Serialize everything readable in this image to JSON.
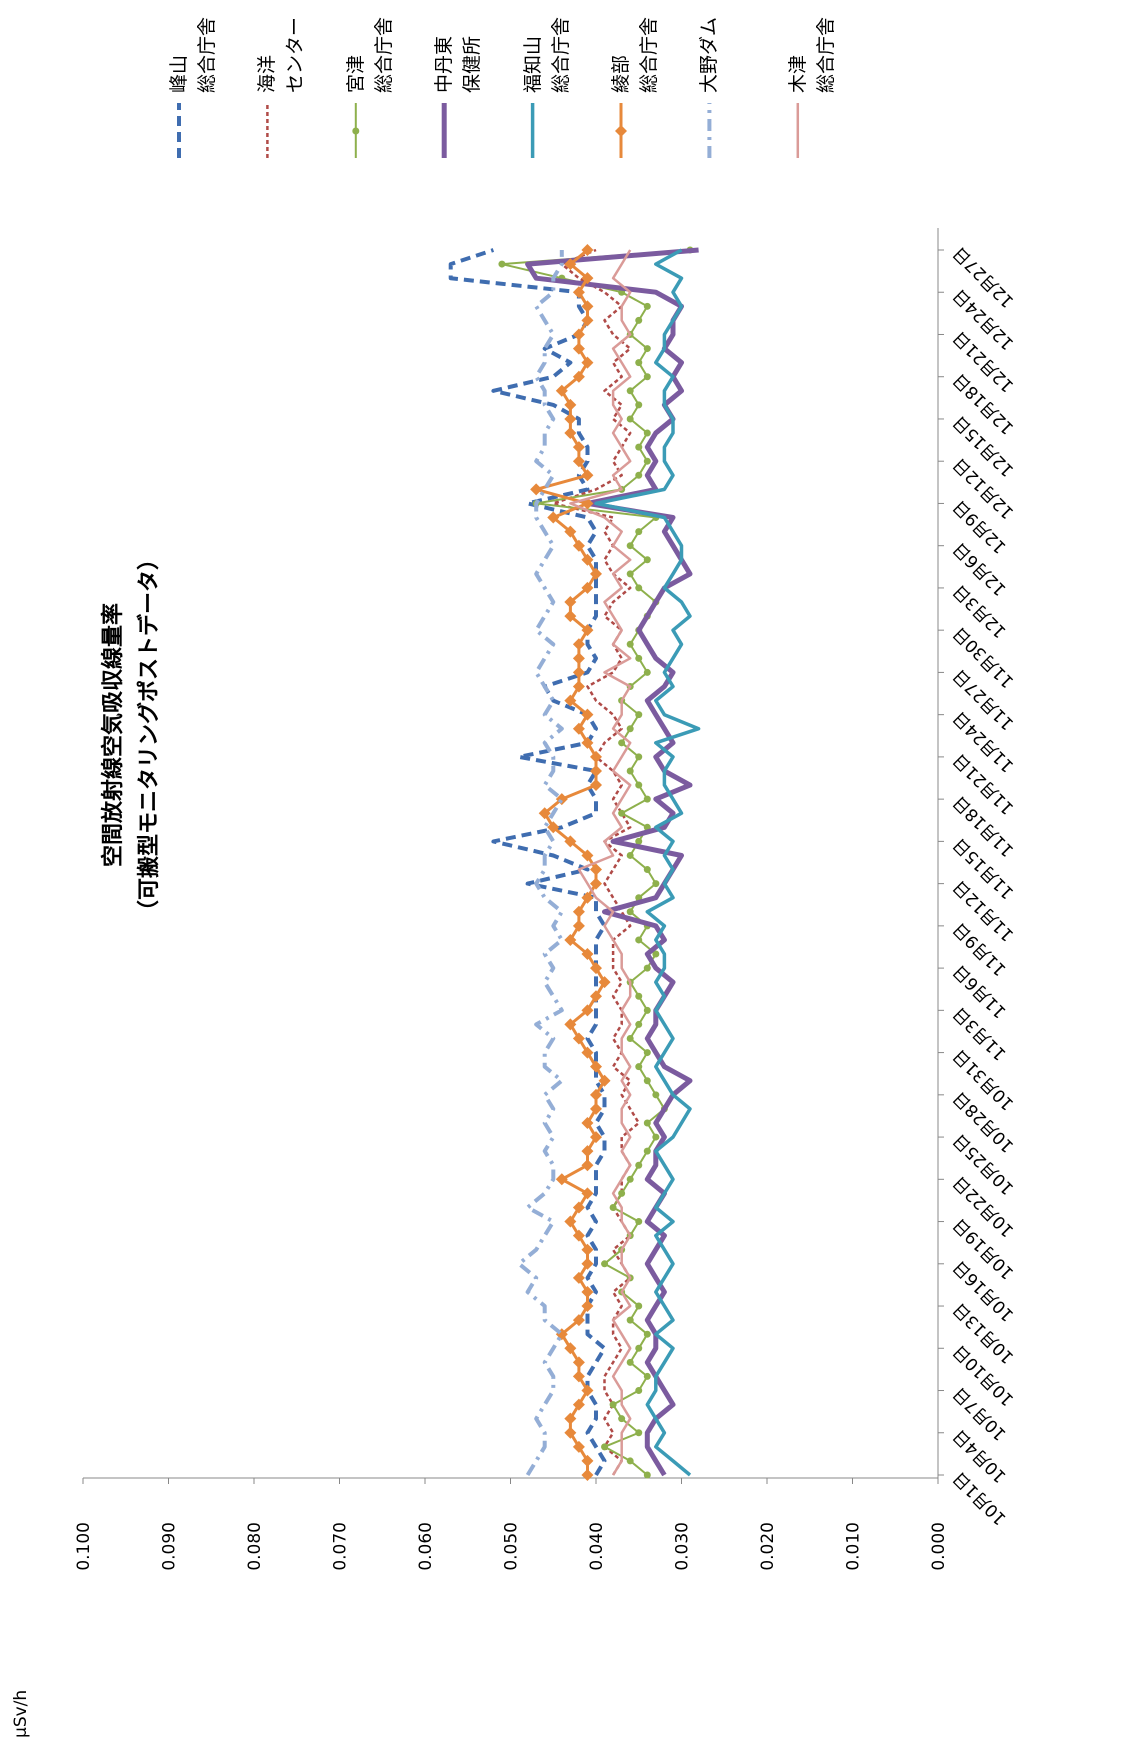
{
  "chart_data": {
    "type": "line",
    "title": "空間放射線空気吸収線量率",
    "subtitle": "（可搬型モニタリングポストデータ）",
    "y_label": "µSv/h",
    "categories": [
      "10月1日",
      null,
      null,
      "10月4日",
      null,
      null,
      "10月7日",
      null,
      null,
      "10月10日",
      null,
      null,
      "10月13日",
      null,
      null,
      "10月16日",
      null,
      null,
      "10月19日",
      null,
      null,
      "10月22日",
      null,
      null,
      "10月25日",
      null,
      null,
      "10月28日",
      null,
      null,
      "10月31日",
      null,
      null,
      "11月3日",
      null,
      null,
      "11月6日",
      null,
      null,
      "11月9日",
      null,
      null,
      "11月12日",
      null,
      null,
      "11月15日",
      null,
      null,
      "11月18日",
      null,
      null,
      "11月21日",
      null,
      null,
      "11月24日",
      null,
      null,
      "11月27日",
      null,
      null,
      "11月30日",
      null,
      null,
      "12月3日",
      null,
      null,
      "12月6日",
      null,
      null,
      "12月9日",
      null,
      null,
      "12月12日",
      null,
      null,
      "12月15日",
      null,
      null,
      "12月18日",
      null,
      null,
      "12月21日",
      null,
      null,
      "12月24日",
      null,
      null,
      "12月27日"
    ],
    "ylim": [
      0,
      0.1
    ],
    "yticks": [
      {
        "value": 0,
        "label": "0.000"
      },
      {
        "value": 0.01,
        "label": "0.010"
      },
      {
        "value": 0.02,
        "label": "0.020"
      },
      {
        "value": 0.03,
        "label": "0.030"
      },
      {
        "value": 0.04,
        "label": "0.040"
      },
      {
        "value": 0.05,
        "label": "0.050"
      },
      {
        "value": 0.06,
        "label": "0.060"
      },
      {
        "value": 0.07,
        "label": "0.070"
      },
      {
        "value": 0.08,
        "label": "0.080"
      },
      {
        "value": 0.09,
        "label": "0.090"
      },
      {
        "value": 0.1,
        "label": "0.100"
      }
    ],
    "grid": false,
    "legend": "right",
    "series": [
      {
        "name": "峰山\n総合庁舎",
        "color": "#3f6db0",
        "dash": "dashed",
        "values": [
          0.04,
          0.039,
          0.04,
          0.041,
          0.04,
          0.04,
          0.041,
          0.041,
          0.04,
          0.039,
          0.041,
          0.041,
          0.041,
          0.04,
          0.041,
          0.04,
          0.04,
          0.041,
          0.04,
          0.041,
          0.04,
          0.04,
          0.04,
          0.039,
          0.039,
          0.04,
          0.039,
          0.039,
          0.04,
          0.04,
          0.04,
          0.041,
          0.04,
          0.04,
          0.04,
          0.04,
          0.04,
          0.04,
          0.04,
          0.039,
          0.04,
          0.04,
          0.048,
          0.041,
          0.045,
          0.052,
          0.044,
          0.04,
          0.04,
          0.041,
          0.04,
          0.049,
          0.041,
          0.04,
          0.041,
          0.045,
          0.046,
          0.041,
          0.04,
          0.041,
          0.041,
          0.04,
          0.04,
          0.04,
          0.04,
          0.04,
          0.041,
          0.04,
          0.041,
          0.048,
          0.041,
          0.042,
          0.041,
          0.041,
          0.042,
          0.042,
          0.045,
          0.052,
          0.045,
          0.043,
          0.046,
          0.042,
          0.041,
          0.042,
          0.042,
          0.057,
          0.057,
          0.052
        ]
      },
      {
        "name": "海洋\nセンター",
        "color": "#b04b48",
        "dash": "dotted",
        "values": [
          0.038,
          0.037,
          0.039,
          0.038,
          0.039,
          0.038,
          0.039,
          0.039,
          0.038,
          0.037,
          0.038,
          0.038,
          0.037,
          0.038,
          0.036,
          0.037,
          0.038,
          0.036,
          0.037,
          0.038,
          0.037,
          0.037,
          0.036,
          0.037,
          0.037,
          0.035,
          0.036,
          0.037,
          0.036,
          0.038,
          0.037,
          0.038,
          0.037,
          0.037,
          0.038,
          0.037,
          0.038,
          0.038,
          0.038,
          0.036,
          0.037,
          0.038,
          0.039,
          0.038,
          0.037,
          0.039,
          0.036,
          0.037,
          0.038,
          0.037,
          0.038,
          0.04,
          0.039,
          0.037,
          0.038,
          0.04,
          0.041,
          0.038,
          0.037,
          0.038,
          0.037,
          0.039,
          0.038,
          0.036,
          0.038,
          0.039,
          0.038,
          0.039,
          0.038,
          0.045,
          0.04,
          0.037,
          0.038,
          0.037,
          0.036,
          0.038,
          0.037,
          0.039,
          0.037,
          0.038,
          0.036,
          0.038,
          0.039,
          0.037,
          0.039,
          0.042,
          0.044,
          0.04
        ]
      },
      {
        "name": "宮津\n総合庁舎",
        "color": "#8eb04c",
        "marker": "circle",
        "values": [
          0.034,
          0.036,
          0.039,
          0.035,
          0.037,
          0.038,
          0.035,
          0.034,
          0.036,
          0.035,
          0.034,
          0.036,
          0.035,
          0.037,
          0.036,
          0.039,
          0.037,
          0.036,
          0.035,
          0.038,
          0.037,
          0.036,
          0.035,
          0.034,
          0.033,
          0.034,
          0.032,
          0.033,
          0.034,
          0.035,
          0.034,
          0.036,
          0.035,
          0.034,
          0.035,
          0.036,
          0.034,
          0.033,
          0.035,
          0.034,
          0.036,
          0.035,
          0.033,
          0.034,
          0.036,
          0.035,
          0.034,
          0.037,
          0.034,
          0.035,
          0.036,
          0.035,
          0.037,
          0.036,
          0.035,
          0.037,
          0.036,
          0.034,
          0.035,
          0.036,
          0.035,
          0.034,
          0.033,
          0.035,
          0.036,
          0.034,
          0.036,
          0.035,
          0.033,
          0.047,
          0.037,
          0.035,
          0.034,
          0.035,
          0.034,
          0.036,
          0.035,
          0.036,
          0.034,
          0.035,
          0.034,
          0.036,
          0.035,
          0.034,
          0.037,
          0.044,
          0.051,
          0.029
        ]
      },
      {
        "name": "中丹東\n保健所",
        "color": "#7b5b9f",
        "values": [
          0.032,
          0.033,
          0.034,
          0.034,
          0.033,
          0.031,
          0.032,
          0.033,
          0.034,
          0.033,
          0.033,
          0.034,
          0.033,
          0.032,
          0.033,
          0.034,
          0.033,
          0.032,
          0.034,
          0.033,
          0.032,
          0.034,
          0.033,
          0.033,
          0.032,
          0.033,
          0.032,
          0.031,
          0.029,
          0.032,
          0.033,
          0.034,
          0.033,
          0.033,
          0.032,
          0.031,
          0.033,
          0.034,
          0.032,
          0.033,
          0.039,
          0.033,
          0.032,
          0.031,
          0.03,
          0.038,
          0.032,
          0.031,
          0.033,
          0.029,
          0.032,
          0.033,
          0.031,
          0.032,
          0.033,
          0.034,
          0.032,
          0.031,
          0.033,
          0.034,
          0.035,
          0.034,
          0.033,
          0.032,
          0.029,
          0.03,
          0.031,
          0.032,
          0.031,
          0.041,
          0.033,
          0.034,
          0.033,
          0.034,
          0.033,
          0.031,
          0.032,
          0.03,
          0.031,
          0.03,
          0.032,
          0.031,
          0.031,
          0.03,
          0.033,
          0.047,
          0.048,
          0.028
        ]
      },
      {
        "name": "福知山\n総合庁舎",
        "color": "#3b9bb6",
        "values": [
          0.029,
          0.031,
          0.033,
          0.032,
          0.033,
          0.034,
          0.033,
          0.033,
          0.032,
          0.031,
          0.033,
          0.031,
          0.032,
          0.033,
          0.032,
          0.031,
          0.032,
          0.033,
          0.031,
          0.033,
          0.032,
          0.031,
          0.032,
          0.033,
          0.031,
          0.03,
          0.029,
          0.031,
          0.032,
          0.033,
          0.032,
          0.031,
          0.032,
          0.033,
          0.032,
          0.033,
          0.032,
          0.032,
          0.033,
          0.032,
          0.034,
          0.031,
          0.032,
          0.031,
          0.032,
          0.031,
          0.033,
          0.03,
          0.031,
          0.032,
          0.032,
          0.031,
          0.033,
          0.028,
          0.032,
          0.033,
          0.031,
          0.032,
          0.031,
          0.03,
          0.031,
          0.029,
          0.03,
          0.032,
          0.031,
          0.03,
          0.03,
          0.031,
          0.032,
          0.04,
          0.032,
          0.031,
          0.032,
          0.032,
          0.031,
          0.031,
          0.032,
          0.032,
          0.031,
          0.033,
          0.032,
          0.032,
          0.031,
          0.03,
          0.031,
          0.03,
          0.033,
          0.03
        ]
      },
      {
        "name": "綾部\n総合庁舎",
        "color": "#e7893b",
        "marker": "diamond",
        "values": [
          0.041,
          0.041,
          0.042,
          0.043,
          0.043,
          0.042,
          0.041,
          0.042,
          0.042,
          0.043,
          0.044,
          0.042,
          0.041,
          0.041,
          0.042,
          0.041,
          0.041,
          0.042,
          0.043,
          0.042,
          0.041,
          0.044,
          0.041,
          0.041,
          0.04,
          0.041,
          0.04,
          0.04,
          0.039,
          0.04,
          0.041,
          0.042,
          0.043,
          0.041,
          0.04,
          0.039,
          0.04,
          0.041,
          0.043,
          0.042,
          0.042,
          0.041,
          0.04,
          0.04,
          0.041,
          0.043,
          0.045,
          0.046,
          0.044,
          0.04,
          0.04,
          0.04,
          0.041,
          0.042,
          0.041,
          0.043,
          0.042,
          0.042,
          0.042,
          0.042,
          0.041,
          0.043,
          0.043,
          0.041,
          0.04,
          0.041,
          0.042,
          0.043,
          0.045,
          0.041,
          0.047,
          0.041,
          0.042,
          0.042,
          0.043,
          0.043,
          0.043,
          0.044,
          0.042,
          0.041,
          0.042,
          0.042,
          0.041,
          0.041,
          0.042,
          0.041,
          0.043,
          0.041
        ]
      },
      {
        "name": "大野ダム",
        "color": "#94aed6",
        "dash": "dashdot",
        "values": [
          0.048,
          0.047,
          0.046,
          0.046,
          0.047,
          0.046,
          0.045,
          0.045,
          0.046,
          0.045,
          0.044,
          0.046,
          0.046,
          0.048,
          0.047,
          0.049,
          0.047,
          0.046,
          0.045,
          0.048,
          0.046,
          0.045,
          0.045,
          0.046,
          0.045,
          0.046,
          0.045,
          0.046,
          0.044,
          0.046,
          0.046,
          0.045,
          0.047,
          0.044,
          0.045,
          0.046,
          0.045,
          0.046,
          0.044,
          0.045,
          0.044,
          0.046,
          0.047,
          0.046,
          0.046,
          0.045,
          0.046,
          0.045,
          0.044,
          0.046,
          0.045,
          0.045,
          0.046,
          0.044,
          0.046,
          0.045,
          0.046,
          0.047,
          0.046,
          0.045,
          0.047,
          0.046,
          0.045,
          0.046,
          0.047,
          0.046,
          0.045,
          0.046,
          0.047,
          0.047,
          0.046,
          0.045,
          0.047,
          0.046,
          0.046,
          0.045,
          0.046,
          0.046,
          0.047,
          0.046,
          0.046,
          0.045,
          0.046,
          0.047,
          0.045,
          0.045,
          0.044,
          0.044
        ]
      },
      {
        "name": "木津\n総合庁舎",
        "color": "#da9b98",
        "values": [
          0.038,
          0.037,
          0.037,
          0.037,
          0.036,
          0.037,
          0.037,
          0.038,
          0.037,
          0.036,
          0.037,
          0.038,
          0.036,
          0.037,
          0.036,
          0.037,
          0.037,
          0.036,
          0.037,
          0.037,
          0.038,
          0.037,
          0.036,
          0.037,
          0.036,
          0.037,
          0.037,
          0.036,
          0.037,
          0.036,
          0.037,
          0.037,
          0.036,
          0.037,
          0.036,
          0.036,
          0.037,
          0.037,
          0.038,
          0.039,
          0.038,
          0.04,
          0.041,
          0.042,
          0.038,
          0.039,
          0.037,
          0.038,
          0.037,
          0.036,
          0.038,
          0.037,
          0.036,
          0.038,
          0.037,
          0.037,
          0.036,
          0.039,
          0.036,
          0.038,
          0.037,
          0.038,
          0.039,
          0.037,
          0.038,
          0.036,
          0.038,
          0.037,
          0.039,
          0.043,
          0.037,
          0.038,
          0.036,
          0.037,
          0.038,
          0.037,
          0.038,
          0.038,
          0.036,
          0.037,
          0.038,
          0.036,
          0.037,
          0.037,
          0.036,
          0.038,
          0.037,
          0.036
        ]
      }
    ]
  }
}
